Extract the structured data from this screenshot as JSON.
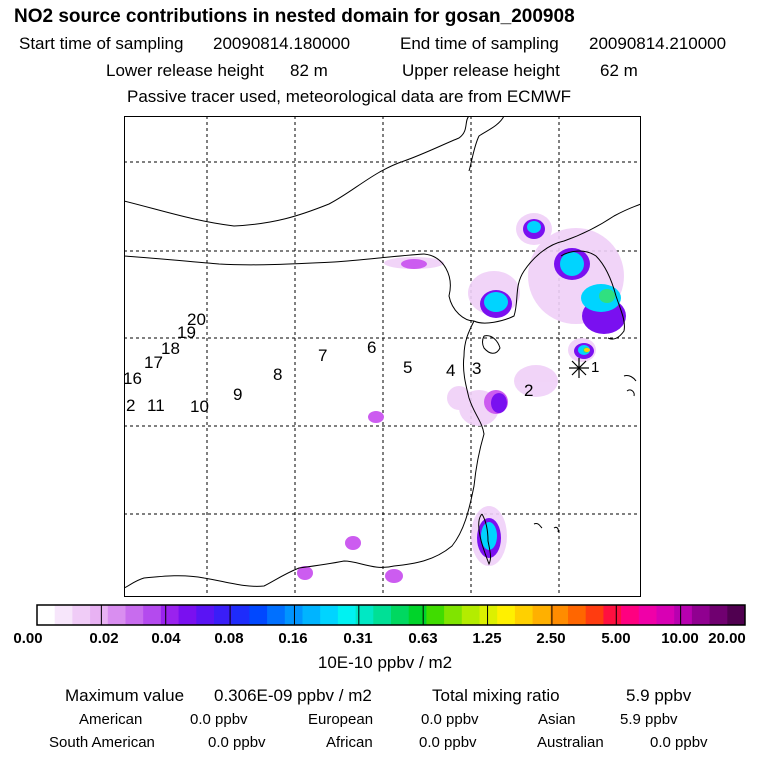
{
  "title": "NO2 source contributions in nested domain for gosan_200908",
  "sampling": {
    "start_label": "Start time of sampling",
    "start_value": "20090814.180000",
    "end_label": "End time of sampling",
    "end_value": "20090814.210000"
  },
  "release": {
    "lower_label": "Lower release height",
    "lower_value": "82 m",
    "upper_label": "Upper release height",
    "upper_value": "62 m"
  },
  "note": "Passive tracer used, meteorological data are from ECMWF",
  "station_numbers": [
    "20",
    "19",
    "18",
    "17",
    "16",
    "2",
    "11",
    "10",
    "9",
    "8",
    "7",
    "6",
    "5",
    "4",
    "3",
    "2",
    "1"
  ],
  "colorbar": {
    "ticks": [
      "0.00",
      "0.02",
      "0.04",
      "0.08",
      "0.16",
      "0.31",
      "0.63",
      "1.25",
      "2.50",
      "5.00",
      "10.00",
      "20.00"
    ],
    "colors": [
      "#ffffff",
      "#f7e6fb",
      "#f0ccf7",
      "#e8b2f3",
      "#d98ef0",
      "#c86cee",
      "#b44aee",
      "#9a22ee",
      "#7a10f0",
      "#5a14f4",
      "#3a1ef8",
      "#1e2cfb",
      "#0048ff",
      "#0070ff",
      "#0094ff",
      "#00b4ff",
      "#00d4ff",
      "#00f2f2",
      "#00e8c4",
      "#00e096",
      "#00d860",
      "#00d42a",
      "#40dc00",
      "#80e400",
      "#b4ec00",
      "#dcf000",
      "#fff000",
      "#ffd000",
      "#ffb000",
      "#ff8c00",
      "#ff6600",
      "#ff3c10",
      "#ff1040",
      "#ff0080",
      "#f000a8",
      "#d800b4",
      "#b800b0",
      "#900090",
      "#700070",
      "#500050"
    ],
    "unit": "10E-10 ppbv / m2"
  },
  "stats": {
    "max_label": "Maximum value",
    "max_value": "0.306E-09 ppbv / m2",
    "total_label": "Total mixing ratio",
    "total_value": "5.9 ppbv"
  },
  "regions": {
    "american_label": "American",
    "american_value": "0.0 ppbv",
    "european_label": "European",
    "european_value": "0.0 ppbv",
    "asian_label": "Asian",
    "asian_value": "5.9 ppbv",
    "south_american_label": "South American",
    "south_american_value": "0.0 ppbv",
    "african_label": "African",
    "african_value": "0.0 ppbv",
    "australian_label": "Australian",
    "australian_value": "0.0 ppbv"
  }
}
